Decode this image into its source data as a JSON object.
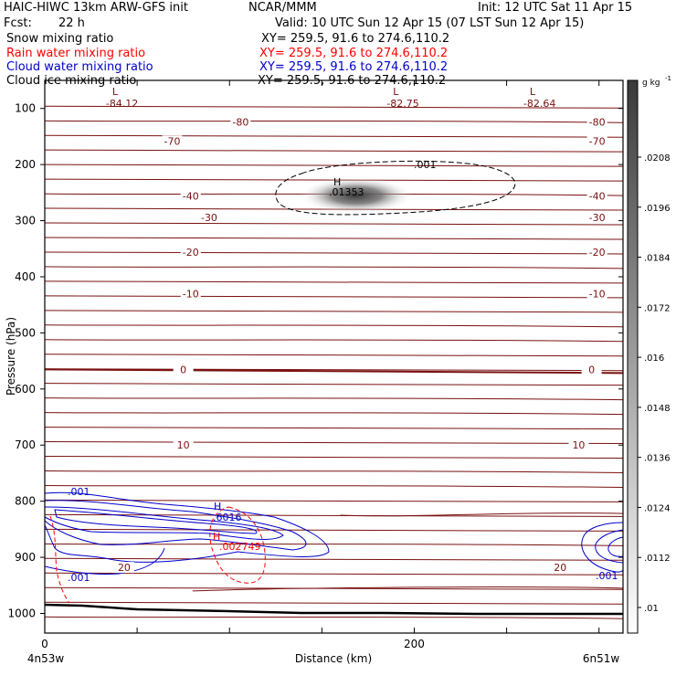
{
  "header": {
    "model_title": "HAIC-HIWC 13km ARW-GFS init",
    "org": "NCAR/MMM",
    "init": "Init: 12 UTC Sat 11 Apr 15",
    "fcst_label": "Fcst:",
    "fcst_value": "22 h",
    "valid": "Valid: 10 UTC Sun 12 Apr 15 (07 LST Sun 12 Apr 15)"
  },
  "legend": [
    {
      "label": "Snow mixing ratio",
      "xy": "XY= 259.5, 91.6 to 274.6,110.2",
      "color": "#000000"
    },
    {
      "label": "Rain water mixing ratio",
      "xy": "XY= 259.5, 91.6 to 274.6,110.2",
      "color": "#ff0000"
    },
    {
      "label": "Cloud water mixing ratio",
      "xy": "XY= 259.5, 91.6 to 274.6,110.2",
      "color": "#0000cc"
    },
    {
      "label": "Cloud ice mixing ratio",
      "xy": "XY= 259.5, 91.6 to 274.6,110.2",
      "color": "#000000"
    }
  ],
  "chart_data": {
    "type": "contour cross-section",
    "ylabel": "Pressure (hPa)",
    "xlabel": "Distance (km)",
    "y_ticks": [
      100,
      200,
      300,
      400,
      500,
      600,
      700,
      800,
      900,
      1000
    ],
    "x_ticks": [
      0,
      200
    ],
    "x_range_km": [
      0,
      313
    ],
    "y_range_hpa": [
      50,
      1035
    ],
    "endpoints": {
      "left": "4n53w",
      "right": "6n51w"
    },
    "colorbar": {
      "unit": "g kg",
      "unit_exp": "-1",
      "ticks": [
        ".0208",
        ".0196",
        ".0184",
        ".0172",
        ".016",
        ".0148",
        ".0136",
        ".0124",
        ".0112",
        ".01"
      ],
      "range": [
        0.01,
        0.022
      ]
    },
    "temperature_contours": {
      "color": "#7a1010",
      "labeled": [
        {
          "value": "-80",
          "p": 124
        },
        {
          "value": "-70",
          "p": 158
        },
        {
          "value": "-40",
          "p": 256
        },
        {
          "value": "-30",
          "p": 294
        },
        {
          "value": "-20",
          "p": 356
        },
        {
          "value": "-10",
          "p": 430
        },
        {
          "value": "0",
          "p": 565
        },
        {
          "value": "10",
          "p": 700
        },
        {
          "value": "20",
          "p": 918
        }
      ]
    },
    "lows": [
      {
        "label": "L",
        "value": "-84.12",
        "x_km": 38
      },
      {
        "label": "L",
        "value": "-82.75",
        "x_km": 190
      },
      {
        "label": "L",
        "value": "-82.64",
        "x_km": 264
      }
    ],
    "cloud_ice": {
      "max_label": "H",
      "max_value": ".01353",
      "contour_label": ".001",
      "max_x_km": 160,
      "max_p": 250
    },
    "cloud_water": {
      "max_label": "H",
      "max_value": ".6016",
      "contour_labels": [
        ".001",
        ".001",
        ".001"
      ]
    },
    "rain_water": {
      "max_label": "H",
      "max_value": ".002749"
    }
  }
}
